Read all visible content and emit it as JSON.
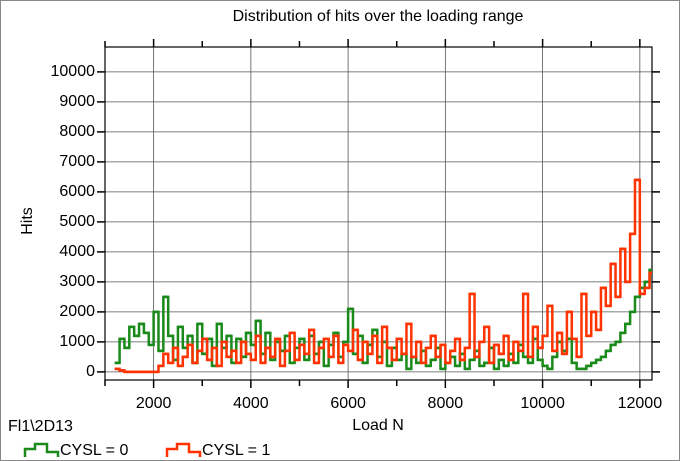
{
  "chart_data": {
    "type": "step",
    "title": "Distribution of hits over the loading range",
    "subtitle": "Fl1\\2D13",
    "x_label": "Load N",
    "y_label": "Hits",
    "xlim": [
      1000,
      12250
    ],
    "ylim": [
      -270,
      10830
    ],
    "xticks": [
      2000,
      4000,
      6000,
      8000,
      10000,
      12000
    ],
    "x_minor_ticks": [
      1000,
      3000,
      5000,
      7000,
      9000,
      11000
    ],
    "yticks": [
      0,
      1000,
      2000,
      3000,
      4000,
      5000,
      6000,
      7000,
      8000,
      9000,
      10000
    ],
    "grid": true,
    "legend": "bottom-left",
    "x": [
      1200,
      1300,
      1400,
      1500,
      1600,
      1700,
      1800,
      1900,
      2000,
      2100,
      2200,
      2300,
      2400,
      2500,
      2600,
      2700,
      2800,
      2900,
      3000,
      3100,
      3200,
      3300,
      3400,
      3500,
      3600,
      3700,
      3800,
      3900,
      4000,
      4100,
      4200,
      4300,
      4400,
      4500,
      4600,
      4700,
      4800,
      4900,
      5000,
      5100,
      5200,
      5300,
      5400,
      5500,
      5600,
      5700,
      5800,
      5900,
      6000,
      6100,
      6200,
      6300,
      6400,
      6500,
      6600,
      6700,
      6800,
      6900,
      7000,
      7100,
      7200,
      7300,
      7400,
      7500,
      7600,
      7700,
      7800,
      7900,
      8000,
      8100,
      8200,
      8300,
      8400,
      8500,
      8600,
      8700,
      8800,
      8900,
      9000,
      9100,
      9200,
      9300,
      9400,
      9500,
      9600,
      9700,
      9800,
      9900,
      10000,
      10100,
      10200,
      10300,
      10400,
      10500,
      10600,
      10700,
      10800,
      10900,
      11000,
      11100,
      11200,
      11300,
      11400,
      11500,
      11600,
      11700,
      11800,
      11900,
      12000,
      12100,
      12200
    ],
    "series": [
      {
        "name": "CYSL = 0",
        "color": "#1a8a1a",
        "values": [
          300,
          1100,
          800,
          1500,
          1200,
          1600,
          1300,
          900,
          2000,
          700,
          2500,
          1200,
          400,
          1500,
          800,
          1200,
          300,
          1600,
          600,
          1100,
          200,
          1600,
          800,
          1200,
          300,
          1100,
          500,
          1300,
          900,
          1700,
          600,
          1300,
          400,
          1000,
          700,
          1200,
          300,
          800,
          1100,
          400,
          1200,
          600,
          1000,
          200,
          900,
          1300,
          500,
          1000,
          2100,
          600,
          1200,
          300,
          900,
          1400,
          500,
          1000,
          200,
          800,
          400,
          600,
          100,
          500,
          300,
          700,
          200,
          400,
          800,
          100,
          300,
          500,
          200,
          600,
          100,
          400,
          700,
          200,
          300,
          800,
          100,
          400,
          200,
          600,
          300,
          900,
          500,
          300,
          1100,
          400,
          200,
          100,
          500,
          1000,
          700,
          1100,
          300,
          100,
          100,
          200,
          300,
          400,
          500,
          700,
          900,
          1000,
          1300,
          1600,
          2000,
          2500,
          2800,
          3000,
          3400
        ]
      },
      {
        "name": "CYSL = 1",
        "color": "#ff3300",
        "values": [
          100,
          50,
          0,
          0,
          0,
          0,
          0,
          0,
          0,
          200,
          600,
          300,
          800,
          200,
          500,
          900,
          300,
          700,
          1100,
          400,
          800,
          200,
          1000,
          500,
          700,
          300,
          1000,
          600,
          400,
          1200,
          300,
          800,
          500,
          1100,
          200,
          700,
          1300,
          400,
          900,
          600,
          1400,
          300,
          800,
          1100,
          500,
          1200,
          300,
          900,
          700,
          1400,
          400,
          1000,
          600,
          1200,
          300,
          1500,
          800,
          400,
          1100,
          600,
          1600,
          500,
          1000,
          300,
          800,
          1200,
          500,
          900,
          300,
          700,
          1100,
          400,
          800,
          2600,
          500,
          1000,
          1500,
          300,
          900,
          600,
          1200,
          400,
          1000,
          700,
          2600,
          500,
          1500,
          800,
          1200,
          2200,
          700,
          1300,
          600,
          2000,
          1100,
          500,
          2600,
          1200,
          2000,
          1400,
          2800,
          2200,
          3600,
          2500,
          4100,
          3000,
          4600,
          6400,
          2600,
          2800,
          3300
        ]
      }
    ]
  }
}
